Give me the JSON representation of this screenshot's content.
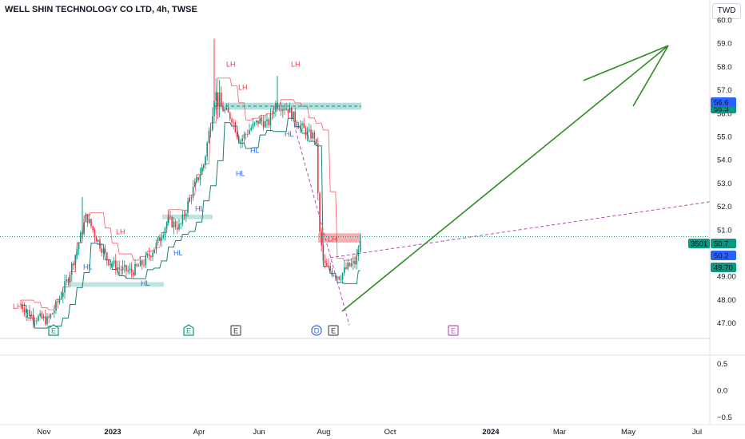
{
  "header": {
    "title": "WELL SHIN TECHNOLOGY CO LTD, 4h, TWSE",
    "currency": "TWD"
  },
  "colors": {
    "up": "#089981",
    "down": "#f23645",
    "arrow": "#2e8b22",
    "dashed": "#b04cb0",
    "pivot_hl": "#2962ff",
    "pivot_lh": "#f23645"
  },
  "chart_data": [
    {
      "type": "candlestick",
      "title": "WELL SHIN TECHNOLOGY CO LTD, 4h, TWSE",
      "ylim": [
        46.8,
        60.4
      ],
      "yticks": [
        "60.0",
        "59.0",
        "58.0",
        "57.0",
        "56.0",
        "55.0",
        "54.0",
        "53.0",
        "52.0",
        "51.0",
        "49.00",
        "48.00",
        "47.00"
      ],
      "xticks": [
        "Nov",
        "2023",
        "Apr",
        "Jun",
        "Aug",
        "Oct",
        "2024",
        "Mar",
        "May",
        "Jul"
      ],
      "xticks_bold": [
        "2023",
        "2024"
      ],
      "price_labels": [
        {
          "text": "50.7",
          "color": "#089981"
        },
        {
          "text": "50.2",
          "color": "#2962ff"
        },
        {
          "text": "49.70",
          "color": "#089981"
        },
        {
          "text": "56.3",
          "color": "#089981"
        },
        {
          "text": "56.6",
          "color": "#2962ff"
        }
      ],
      "symbol_label": "3501",
      "pivot_labels": [
        {
          "text": "LH",
          "kind": "LH"
        },
        {
          "text": "LH",
          "kind": "LH"
        },
        {
          "text": "LH",
          "kind": "LH"
        },
        {
          "text": "LH",
          "kind": "LH"
        },
        {
          "text": "LH",
          "kind": "LH"
        },
        {
          "text": "LH",
          "kind": "LH"
        },
        {
          "text": "LH",
          "kind": "LH"
        },
        {
          "text": "HL",
          "kind": "HL"
        },
        {
          "text": "HL",
          "kind": "HL"
        },
        {
          "text": "HL",
          "kind": "HL"
        },
        {
          "text": "HL",
          "kind": "HL"
        },
        {
          "text": "HL",
          "kind": "HL"
        },
        {
          "text": "HL",
          "kind": "HL"
        },
        {
          "text": "HL",
          "kind": "HL"
        }
      ],
      "event_markers": [
        {
          "text": "E",
          "kind": "earnings-reported"
        },
        {
          "text": "E",
          "kind": "earnings-reported"
        },
        {
          "text": "E",
          "kind": "earnings"
        },
        {
          "text": "D",
          "kind": "dividend"
        },
        {
          "text": "E",
          "kind": "earnings"
        },
        {
          "text": "E",
          "kind": "earnings-future"
        }
      ],
      "last_price": 50.7
    },
    {
      "type": "line",
      "title": "",
      "ylim": [
        -0.6,
        0.75
      ],
      "yticks": [
        "0.5",
        "0.0",
        "−0.5"
      ]
    }
  ]
}
